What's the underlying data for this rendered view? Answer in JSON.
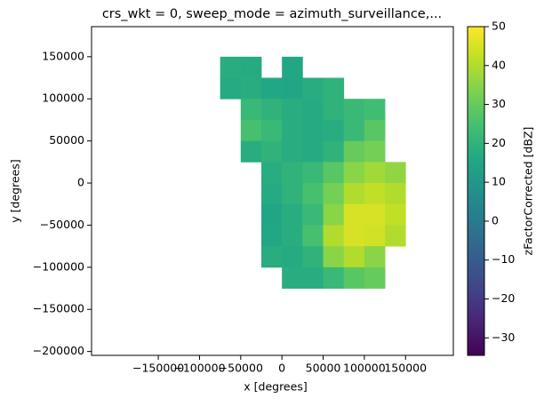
{
  "chart_data": {
    "type": "heatmap",
    "title": "crs_wkt = 0, sweep_mode = azimuth_surveillance,...",
    "x_label": "x [degrees]",
    "y_label": "y [degrees]",
    "colorbar_label": "zFactorCorrected [dBZ]",
    "colormap": "viridis",
    "x": [
      -62500,
      -37500,
      -12500,
      12500,
      37500,
      62500,
      87500,
      112500,
      137500
    ],
    "y": [
      137500,
      112500,
      87500,
      62500,
      37500,
      12500,
      -12500,
      -37500,
      -62500,
      -87500,
      -112500
    ],
    "values": [
      [
        18,
        17,
        null,
        16,
        null,
        null,
        null,
        null,
        null
      ],
      [
        17,
        18,
        16,
        15,
        18,
        20,
        null,
        null,
        null
      ],
      [
        null,
        22,
        20,
        18,
        17,
        20,
        22,
        24,
        null
      ],
      [
        null,
        25,
        22,
        18,
        17,
        18,
        22,
        28,
        null
      ],
      [
        null,
        18,
        20,
        18,
        17,
        20,
        30,
        32,
        null
      ],
      [
        null,
        null,
        18,
        20,
        22,
        28,
        35,
        38,
        36
      ],
      [
        null,
        null,
        17,
        20,
        25,
        32,
        40,
        42,
        40
      ],
      [
        null,
        null,
        15,
        18,
        22,
        35,
        45,
        45,
        42
      ],
      [
        null,
        null,
        16,
        18,
        25,
        40,
        45,
        44,
        40
      ],
      [
        null,
        null,
        18,
        17,
        20,
        35,
        40,
        35,
        null
      ],
      [
        null,
        null,
        null,
        18,
        18,
        22,
        28,
        30,
        null
      ]
    ],
    "xlim": [
      -231000,
      208000
    ],
    "ylim": [
      -204600,
      185700
    ],
    "xticks": [
      {
        "value": -150000,
        "label": "−150000"
      },
      {
        "value": -100000,
        "label": "−100000"
      },
      {
        "value": -50000,
        "label": "−50000"
      },
      0,
      50000,
      100000,
      150000
    ],
    "yticks": [
      {
        "value": -200000,
        "label": "−200000"
      },
      {
        "value": -150000,
        "label": "−150000"
      },
      {
        "value": -100000,
        "label": "−100000"
      },
      {
        "value": -50000,
        "label": "−50000"
      },
      0,
      50000,
      100000,
      150000
    ],
    "clim": [
      -34.5,
      50
    ],
    "cticks": [
      {
        "value": -30,
        "label": "−30"
      },
      {
        "value": -20,
        "label": "−20"
      },
      {
        "value": -10,
        "label": "−10"
      },
      0,
      10,
      20,
      30,
      40,
      50
    ]
  }
}
